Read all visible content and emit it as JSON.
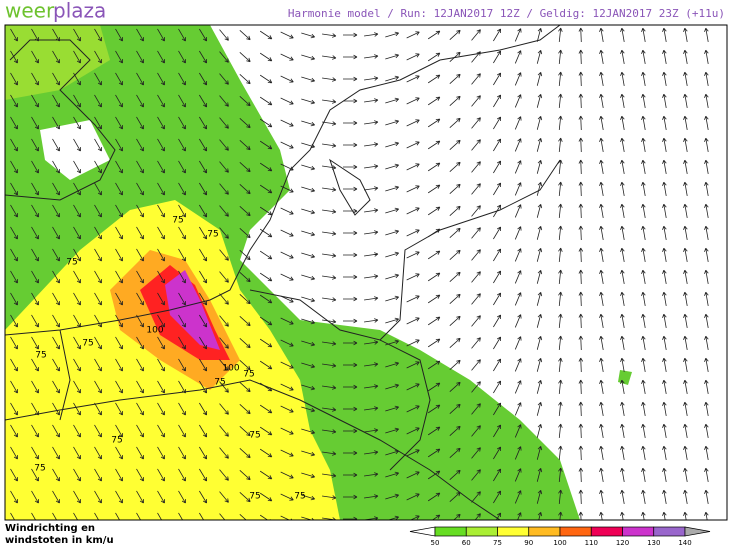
{
  "header": {
    "logo_part1": "weer",
    "logo_part2": "plaza",
    "title": "Harmonie model / Run: 12JAN2017 12Z / Geldig: 12JAN2017 23Z (+11u)"
  },
  "legend": {
    "line1": "Windrichting en",
    "line2": "windstoten in km/u",
    "ticks": [
      50,
      60,
      75,
      90,
      100,
      110,
      120,
      130,
      140
    ],
    "colors": [
      "#66dd22",
      "#aaee33",
      "#ffff33",
      "#ffbb22",
      "#ff6611",
      "#ee0055",
      "#cc33cc",
      "#9966cc"
    ]
  },
  "contour_labels": [
    75,
    75,
    75,
    75,
    75,
    75,
    75,
    75,
    75,
    75,
    75,
    75,
    100,
    100
  ]
}
